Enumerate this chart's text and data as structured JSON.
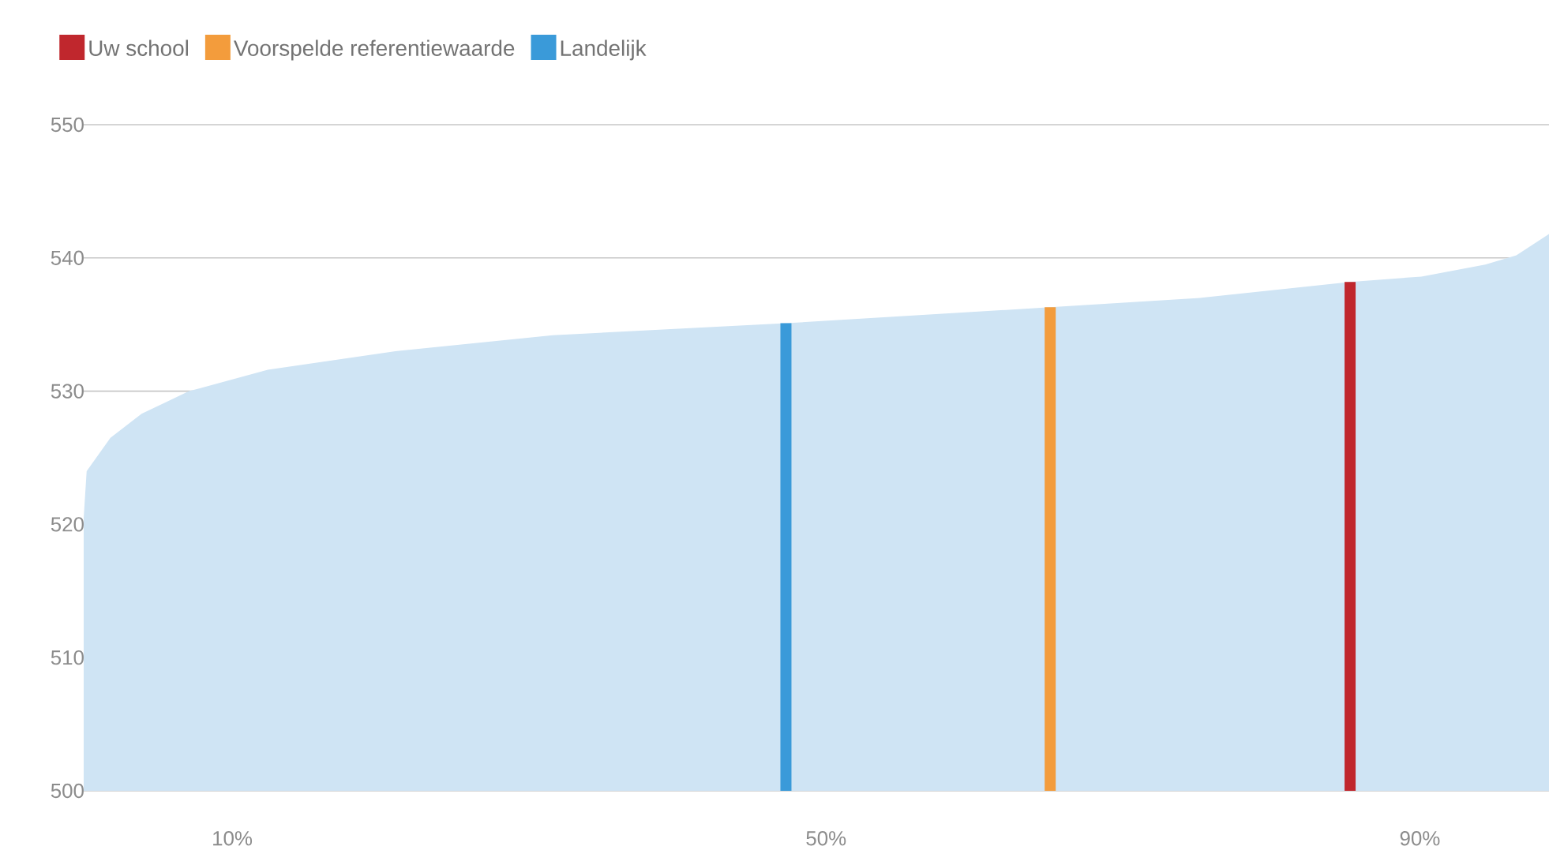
{
  "chart_data": {
    "type": "area",
    "xlim": [
      0,
      98.7
    ],
    "ylim": [
      500,
      550
    ],
    "yticks": [
      500,
      510,
      520,
      530,
      540,
      550
    ],
    "xticks": [
      {
        "value": 10,
        "label": "10%"
      },
      {
        "value": 50,
        "label": "50%"
      },
      {
        "value": 90,
        "label": "90%"
      }
    ],
    "grid": "y",
    "legend": "top left",
    "series": [
      {
        "color": "#cfe4f4",
        "x": [
          0,
          0.2,
          1.8,
          3.9,
          7.1,
          12.4,
          21,
          31.6,
          47.3,
          65.1,
          75.2,
          85.3,
          90.1,
          94.4,
          96.5,
          98.7
        ],
        "values": [
          520.5,
          524,
          526.5,
          528.3,
          530,
          531.6,
          533,
          534.2,
          535.1,
          536.3,
          537,
          538.2,
          538.6,
          539.5,
          540.2,
          541.8
        ]
      },
      {
        "type": "bar",
        "name": "Uw school",
        "color": "#c0272d",
        "x": [
          85.3
        ],
        "values": [
          538.2
        ]
      },
      {
        "type": "bar",
        "name": "Voorspelde referentiewaarde",
        "color": "#f39c3c",
        "x": [
          65.1
        ],
        "values": [
          536.3
        ]
      },
      {
        "type": "bar",
        "name": "Landelijk",
        "color": "#3a9ad9",
        "x": [
          47.3
        ],
        "values": [
          535.1
        ]
      }
    ]
  }
}
